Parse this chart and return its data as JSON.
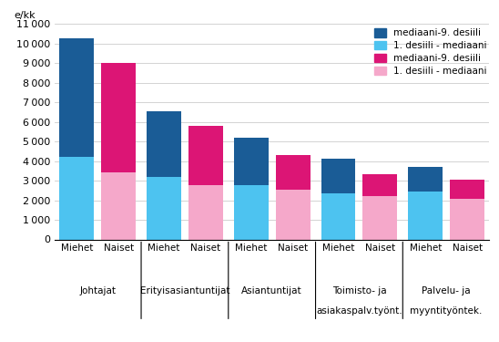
{
  "groups": [
    "Johtajat",
    "Erityisasiantuntijat",
    "Asiantuntijat",
    "Toimisto- ja\nasiakaspalv.työnt.",
    "Palvelu- ja\nmyyntityöntek."
  ],
  "men_d1_median": [
    4200,
    3200,
    2750,
    2350,
    2450
  ],
  "men_median_d9": [
    6050,
    3350,
    2450,
    1750,
    1250
  ],
  "women_d1_median": [
    3400,
    2750,
    2550,
    2200,
    2050
  ],
  "women_median_d9": [
    5600,
    3050,
    1750,
    1150,
    1000
  ],
  "color_men_bottom": "#4DC3F0",
  "color_men_top": "#1A5C96",
  "color_women_bottom": "#F5A8CA",
  "color_women_top": "#DC1575",
  "ylabel": "e/kk",
  "ylim": [
    0,
    11000
  ],
  "yticks": [
    0,
    1000,
    2000,
    3000,
    4000,
    5000,
    6000,
    7000,
    8000,
    9000,
    10000,
    11000
  ],
  "legend_labels": [
    "mediaani-9. desiili",
    "1. desiili - mediaani",
    "mediaani-9. desiili",
    "1. desiili - mediaani"
  ],
  "legend_colors": [
    "#1A5C96",
    "#4DC3F0",
    "#DC1575",
    "#F5A8CA"
  ],
  "bar_width": 0.38,
  "group_sep": 0.08
}
